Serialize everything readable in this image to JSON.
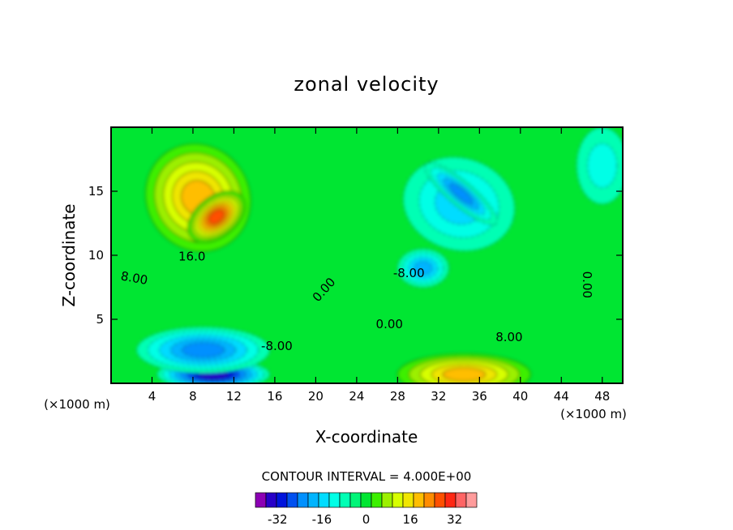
{
  "chart_data": {
    "type": "heatmap",
    "title": "zonal velocity",
    "xlabel": "X-coordinate",
    "ylabel": "Z-coordinate",
    "x_units": "(×1000 m)",
    "y_units": "(×1000 m)",
    "xlim": [
      0,
      50
    ],
    "ylim": [
      0,
      20
    ],
    "x_ticks": [
      "4",
      "8",
      "12",
      "16",
      "20",
      "24",
      "28",
      "32",
      "36",
      "40",
      "44",
      "48"
    ],
    "y_ticks": [
      "5",
      "10",
      "15"
    ],
    "contour_interval_text": "CONTOUR INTERVAL = 4.000E+00",
    "contour_labels": [
      {
        "text": "16.0",
        "x": 7.9,
        "z": 9.6,
        "angle": 0
      },
      {
        "text": "8.00",
        "x": 2.2,
        "z": 7.9,
        "angle": 10
      },
      {
        "text": "0.00",
        "x": 21.1,
        "z": 7.1,
        "angle": -48
      },
      {
        "text": "-8.00",
        "x": 29.1,
        "z": 8.3,
        "angle": 0
      },
      {
        "text": "0.00",
        "x": 27.2,
        "z": 4.3,
        "angle": 0
      },
      {
        "text": "-8.00",
        "x": 16.2,
        "z": 2.6,
        "angle": 0
      },
      {
        "text": "8.00",
        "x": 38.9,
        "z": 3.3,
        "angle": 0
      },
      {
        "text": "0.00",
        "x": 46.1,
        "z": 7.7,
        "angle": 90
      }
    ],
    "colorbar": {
      "ticks": [
        "-32",
        "-16",
        "0",
        "16",
        "32"
      ],
      "tick_values": [
        -32,
        -16,
        0,
        16,
        32
      ],
      "levels": [
        -40,
        -36,
        -32,
        -28,
        -24,
        -20,
        -16,
        -12,
        -8,
        -4,
        0,
        4,
        8,
        12,
        16,
        20,
        24,
        28,
        32,
        36,
        40
      ],
      "colors": [
        "#8c00b4",
        "#2800c8",
        "#0014dc",
        "#0050f0",
        "#0090ff",
        "#00b4ff",
        "#00dcff",
        "#00ffe6",
        "#00ffb4",
        "#00f578",
        "#00e632",
        "#3cf000",
        "#9cf000",
        "#d7ff00",
        "#f0e600",
        "#ffbe00",
        "#ff8c00",
        "#ff5000",
        "#ff2814",
        "#ff6464",
        "#ff9c9c"
      ]
    },
    "field_features": [
      {
        "value": 22,
        "x": 8.5,
        "z": 14.5,
        "sx": 5.0,
        "sz": 4.3,
        "rot": -35
      },
      {
        "value": 28,
        "x": 10.3,
        "z": 13.0,
        "sx": 3.2,
        "sz": 1.6,
        "rot": -38
      },
      {
        "value": -15,
        "x": 34.0,
        "z": 14.0,
        "sx": 5.5,
        "sz": 3.6,
        "rot": 15
      },
      {
        "value": -16,
        "x": 30.5,
        "z": 9.0,
        "sx": 2.5,
        "sz": 1.5,
        "rot": 0
      },
      {
        "value": -22,
        "x": 34.2,
        "z": 14.8,
        "sx": 4.5,
        "sz": 1.0,
        "rot": 40
      },
      {
        "value": -32,
        "x": 10.0,
        "z": 0.7,
        "sx": 5.5,
        "sz": 1.2,
        "rot": 0
      },
      {
        "value": -20,
        "x": 9.0,
        "z": 2.6,
        "sx": 6.5,
        "sz": 1.8,
        "rot": 0
      },
      {
        "value": 22,
        "x": 34.5,
        "z": 0.7,
        "sx": 6.5,
        "sz": 1.6,
        "rot": 0
      },
      {
        "value": -10,
        "x": 48.0,
        "z": 17.0,
        "sx": 2.5,
        "sz": 3.0,
        "rot": 0
      }
    ]
  }
}
